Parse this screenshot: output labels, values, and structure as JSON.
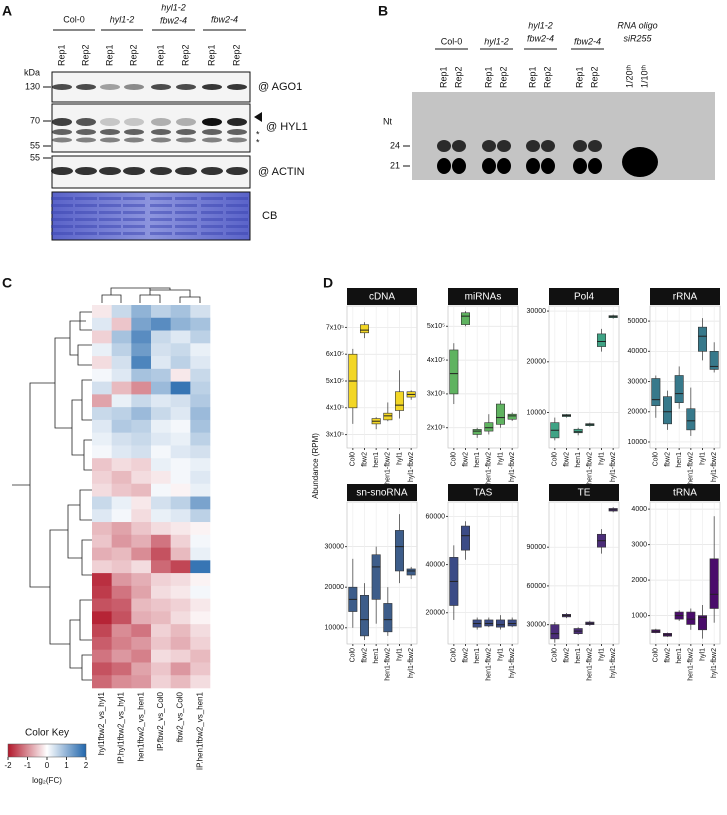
{
  "panel_a": {
    "label": "A",
    "groups": [
      [
        "Col-0"
      ],
      [
        "hyl1-2"
      ],
      [
        "hyl1-2",
        "fbw2-4"
      ],
      [
        "fbw2-4"
      ]
    ],
    "lanes": [
      "Rep1",
      "Rep2",
      "Rep1",
      "Rep2",
      "Rep1",
      "Rep2",
      "Rep1",
      "Rep2"
    ],
    "kda": "kDa",
    "markers": [
      "130",
      "70",
      "55",
      "55"
    ],
    "blots": [
      "@ AGO1",
      "@ HYL1",
      "@ ACTIN",
      "CB"
    ],
    "asterisks": [
      "*",
      "*"
    ]
  },
  "panel_b": {
    "label": "B",
    "groups": [
      [
        "Col-0"
      ],
      [
        "hyl1-2"
      ],
      [
        "hyl1-2",
        "fbw2-4"
      ],
      [
        "fbw2-4"
      ],
      [
        "RNA oligo",
        "siR255"
      ]
    ],
    "lanes": [
      "Rep1",
      "Rep2",
      "Rep1",
      "Rep2",
      "Rep1",
      "Rep2",
      "Rep1",
      "Rep2",
      "1/20ᵗʰ",
      "1/10ᵗʰ"
    ],
    "unit": "Nt",
    "markers": [
      "24",
      "21"
    ]
  },
  "panel_c": {
    "label": "C",
    "columns": [
      "hyl1fbw2_vs_hyl1",
      "IP.hyl1fbw2_vs_hyl1",
      "hen1fbw2_vs_hen1",
      "IP.fbw2_vs_Col0",
      "fbw2_vs_Col0",
      "IP.hen1fbw2_vs_hen1"
    ],
    "values": [
      [
        -0.2,
        0.5,
        1.0,
        0.6,
        0.8,
        0.4
      ],
      [
        0.3,
        -0.5,
        1.2,
        1.5,
        1.0,
        0.8
      ],
      [
        -0.4,
        0.8,
        1.5,
        0.5,
        0.3,
        0.6
      ],
      [
        0.2,
        0.6,
        1.3,
        0.4,
        0.5,
        0.2
      ],
      [
        -0.3,
        0.4,
        1.6,
        0.3,
        0.6,
        0.3
      ],
      [
        0.1,
        0.3,
        0.8,
        0.7,
        -0.2,
        0.5
      ],
      [
        0.4,
        -0.6,
        -1.0,
        0.9,
        1.8,
        0.6
      ],
      [
        -0.8,
        0.2,
        0.5,
        0.3,
        0.4,
        0.7
      ],
      [
        0.5,
        0.6,
        0.9,
        0.5,
        0.3,
        0.9
      ],
      [
        0.3,
        0.7,
        0.6,
        0.2,
        0.1,
        0.8
      ],
      [
        0.2,
        0.4,
        0.5,
        0.3,
        0.2,
        0.6
      ],
      [
        0.1,
        0.3,
        0.4,
        0.1,
        0.3,
        0.4
      ],
      [
        -0.5,
        -0.3,
        -0.4,
        0.2,
        0.1,
        0.2
      ],
      [
        -0.4,
        -0.6,
        -0.3,
        -0.2,
        0.1,
        0.3
      ],
      [
        -0.3,
        -0.5,
        -0.6,
        0.1,
        -0.1,
        0.2
      ],
      [
        0.5,
        0.2,
        -0.2,
        0.4,
        0.6,
        1.2
      ],
      [
        0.3,
        0.1,
        -0.3,
        0.2,
        0.3,
        0.6
      ],
      [
        -0.6,
        -0.8,
        -0.5,
        -0.3,
        -0.2,
        -0.1
      ],
      [
        -0.5,
        -0.9,
        -0.7,
        -1.2,
        -0.4,
        0.1
      ],
      [
        -0.7,
        -0.6,
        -1.0,
        -1.5,
        -0.6,
        0.2
      ],
      [
        -0.4,
        -0.5,
        -0.3,
        -1.3,
        -1.6,
        1.8
      ],
      [
        -1.8,
        -0.9,
        -0.7,
        -0.4,
        -0.3,
        -0.1
      ],
      [
        -1.7,
        -1.2,
        -0.8,
        -0.3,
        -0.2,
        0.1
      ],
      [
        -1.5,
        -1.4,
        -0.6,
        -0.5,
        -0.4,
        -0.2
      ],
      [
        -1.9,
        -1.5,
        -0.7,
        -0.6,
        -0.3,
        -0.1
      ],
      [
        -1.6,
        -1.0,
        -1.2,
        -0.4,
        -0.6,
        -0.3
      ],
      [
        -1.4,
        -1.1,
        -0.9,
        -0.5,
        -0.7,
        -0.4
      ],
      [
        -1.2,
        -0.9,
        -1.1,
        -0.3,
        -0.4,
        -0.6
      ],
      [
        -1.5,
        -1.3,
        -0.8,
        -0.5,
        -0.9,
        -0.5
      ],
      [
        -1.3,
        -1.0,
        -0.9,
        -0.4,
        -0.6,
        -0.3
      ]
    ],
    "color_key": {
      "title": "Color Key",
      "lim": [
        -2,
        2
      ],
      "ticks": [
        -2,
        -1,
        0,
        1,
        2
      ],
      "label": "log₂(FC)",
      "colors": [
        "#b2182b",
        "#ffffff",
        "#2166ac"
      ]
    }
  },
  "chart_data": {
    "type": "box",
    "label": "D",
    "y_label": "Abundance (RPM)",
    "grid": true,
    "categories": [
      "Col0",
      "fbw2",
      "hen1",
      "hen1-fbw2",
      "hyl1",
      "hyl1-fbw2"
    ],
    "facets": [
      {
        "title": "cDNA",
        "color": "#f2d625",
        "ylim": [
          250000,
          780000
        ],
        "yticks": [
          {
            "value": 300000,
            "label": "3x10⁵"
          },
          {
            "value": 400000,
            "label": "4x10⁵"
          },
          {
            "value": 500000,
            "label": "5x10⁵"
          },
          {
            "value": 600000,
            "label": "6x10⁵"
          },
          {
            "value": 700000,
            "label": "7x10⁵"
          }
        ],
        "boxes": [
          {
            "low": 340000,
            "q1": 400000,
            "median": 500000,
            "q3": 600000,
            "high": 620000
          },
          {
            "low": 660000,
            "q1": 680000,
            "median": 690000,
            "q3": 710000,
            "high": 720000
          },
          {
            "low": 320000,
            "q1": 340000,
            "median": 350000,
            "q3": 360000,
            "high": 365000
          },
          {
            "low": 350000,
            "q1": 355000,
            "median": 370000,
            "q3": 380000,
            "high": 420000
          },
          {
            "low": 360000,
            "q1": 390000,
            "median": 410000,
            "q3": 460000,
            "high": 540000
          },
          {
            "low": 430000,
            "q1": 440000,
            "median": 450000,
            "q3": 460000,
            "high": 465000
          }
        ]
      },
      {
        "title": "miRNAs",
        "color": "#5fb360",
        "ylim": [
          140000,
          560000
        ],
        "yticks": [
          {
            "value": 200000,
            "label": "2x10⁵"
          },
          {
            "value": 300000,
            "label": "3x10⁵"
          },
          {
            "value": 400000,
            "label": "4x10⁵"
          },
          {
            "value": 500000,
            "label": "5x10⁵"
          }
        ],
        "boxes": [
          {
            "low": 270000,
            "q1": 300000,
            "median": 360000,
            "q3": 430000,
            "high": 450000
          },
          {
            "low": 500000,
            "q1": 505000,
            "median": 530000,
            "q3": 540000,
            "high": 545000
          },
          {
            "low": 170000,
            "q1": 180000,
            "median": 190000,
            "q3": 195000,
            "high": 200000
          },
          {
            "low": 180000,
            "q1": 190000,
            "median": 200000,
            "q3": 215000,
            "high": 240000
          },
          {
            "low": 200000,
            "q1": 210000,
            "median": 230000,
            "q3": 270000,
            "high": 280000
          },
          {
            "low": 220000,
            "q1": 225000,
            "median": 235000,
            "q3": 240000,
            "high": 245000
          }
        ]
      },
      {
        "title": "Pol4",
        "color": "#3fa385",
        "ylim": [
          3000,
          31000
        ],
        "yticks": [
          10000,
          20000,
          30000
        ],
        "boxes": [
          {
            "low": 4500,
            "q1": 5000,
            "median": 6500,
            "q3": 8000,
            "high": 9000
          },
          {
            "low": 9000,
            "q1": 9200,
            "median": 9400,
            "q3": 9600,
            "high": 9700
          },
          {
            "low": 5500,
            "q1": 6000,
            "median": 6200,
            "q3": 6700,
            "high": 7000
          },
          {
            "low": 7200,
            "q1": 7400,
            "median": 7600,
            "q3": 7800,
            "high": 8000
          },
          {
            "low": 22000,
            "q1": 23000,
            "median": 24000,
            "q3": 25500,
            "high": 26500
          },
          {
            "low": 28500,
            "q1": 28700,
            "median": 28900,
            "q3": 29100,
            "high": 29300
          }
        ]
      },
      {
        "title": "rRNA",
        "color": "#37798b",
        "ylim": [
          8000,
          55000
        ],
        "yticks": [
          10000,
          20000,
          30000,
          40000,
          50000
        ],
        "boxes": [
          {
            "low": 18000,
            "q1": 22000,
            "median": 24000,
            "q3": 31000,
            "high": 32000
          },
          {
            "low": 14000,
            "q1": 16000,
            "median": 20000,
            "q3": 25000,
            "high": 27000
          },
          {
            "low": 21000,
            "q1": 23000,
            "median": 26000,
            "q3": 32000,
            "high": 35000
          },
          {
            "low": 12000,
            "q1": 14000,
            "median": 17000,
            "q3": 21000,
            "high": 28000
          },
          {
            "low": 37000,
            "q1": 40000,
            "median": 45000,
            "q3": 48000,
            "high": 51000
          },
          {
            "low": 33000,
            "q1": 34000,
            "median": 35000,
            "q3": 40000,
            "high": 43000
          }
        ]
      },
      {
        "title": "sn-snoRNA",
        "color": "#3d5d8a",
        "ylim": [
          6000,
          41000
        ],
        "yticks": [
          10000,
          20000,
          30000
        ],
        "boxes": [
          {
            "low": 10000,
            "q1": 14000,
            "median": 17000,
            "q3": 20000,
            "high": 27000
          },
          {
            "low": 7000,
            "q1": 8000,
            "median": 12000,
            "q3": 18000,
            "high": 21000
          },
          {
            "low": 11000,
            "q1": 17000,
            "median": 25000,
            "q3": 28000,
            "high": 30000
          },
          {
            "low": 8000,
            "q1": 9000,
            "median": 12000,
            "q3": 16000,
            "high": 20000
          },
          {
            "low": 21000,
            "q1": 24000,
            "median": 30000,
            "q3": 34000,
            "high": 38000
          },
          {
            "low": 22000,
            "q1": 23000,
            "median": 24000,
            "q3": 24500,
            "high": 25000
          }
        ]
      },
      {
        "title": "TAS",
        "color": "#3b4b86",
        "ylim": [
          7000,
          66000
        ],
        "yticks": [
          20000,
          40000,
          60000
        ],
        "boxes": [
          {
            "low": 17000,
            "q1": 23000,
            "median": 33000,
            "q3": 43000,
            "high": 48000
          },
          {
            "low": 42000,
            "q1": 46000,
            "median": 52000,
            "q3": 56000,
            "high": 58000
          },
          {
            "low": 13000,
            "q1": 14000,
            "median": 15500,
            "q3": 17000,
            "high": 18000
          },
          {
            "low": 14000,
            "q1": 14500,
            "median": 15500,
            "q3": 17000,
            "high": 18000
          },
          {
            "low": 13000,
            "q1": 14000,
            "median": 15000,
            "q3": 17000,
            "high": 19000
          },
          {
            "low": 14000,
            "q1": 14500,
            "median": 15500,
            "q3": 17000,
            "high": 18000
          }
        ]
      },
      {
        "title": "TE",
        "color": "#4b2d79",
        "ylim": [
          15000,
          125000
        ],
        "yticks": [
          30000,
          60000,
          90000
        ],
        "boxes": [
          {
            "low": 16000,
            "q1": 19000,
            "median": 23000,
            "q3": 30000,
            "high": 32000
          },
          {
            "low": 35000,
            "q1": 36000,
            "median": 37000,
            "q3": 38000,
            "high": 39000
          },
          {
            "low": 22000,
            "q1": 23000,
            "median": 25000,
            "q3": 27000,
            "high": 28000
          },
          {
            "low": 29000,
            "q1": 30000,
            "median": 31000,
            "q3": 32000,
            "high": 33000
          },
          {
            "low": 85000,
            "q1": 90000,
            "median": 95000,
            "q3": 100000,
            "high": 104000
          },
          {
            "low": 117000,
            "q1": 118000,
            "median": 119000,
            "q3": 120000,
            "high": 121000
          }
        ]
      },
      {
        "title": "tRNA",
        "color": "#4a0c6b",
        "ylim": [
          200,
          4200
        ],
        "yticks": [
          1000,
          2000,
          3000,
          4000
        ],
        "boxes": [
          {
            "low": 500,
            "q1": 520,
            "median": 560,
            "q3": 600,
            "high": 630
          },
          {
            "low": 400,
            "q1": 420,
            "median": 460,
            "q3": 500,
            "high": 520
          },
          {
            "low": 850,
            "q1": 900,
            "median": 1000,
            "q3": 1100,
            "high": 1150
          },
          {
            "low": 600,
            "q1": 750,
            "median": 900,
            "q3": 1100,
            "high": 1200
          },
          {
            "low": 350,
            "q1": 600,
            "median": 950,
            "q3": 1000,
            "high": 1300
          },
          {
            "low": 800,
            "q1": 1200,
            "median": 1600,
            "q3": 2600,
            "high": 3800
          }
        ]
      }
    ]
  }
}
